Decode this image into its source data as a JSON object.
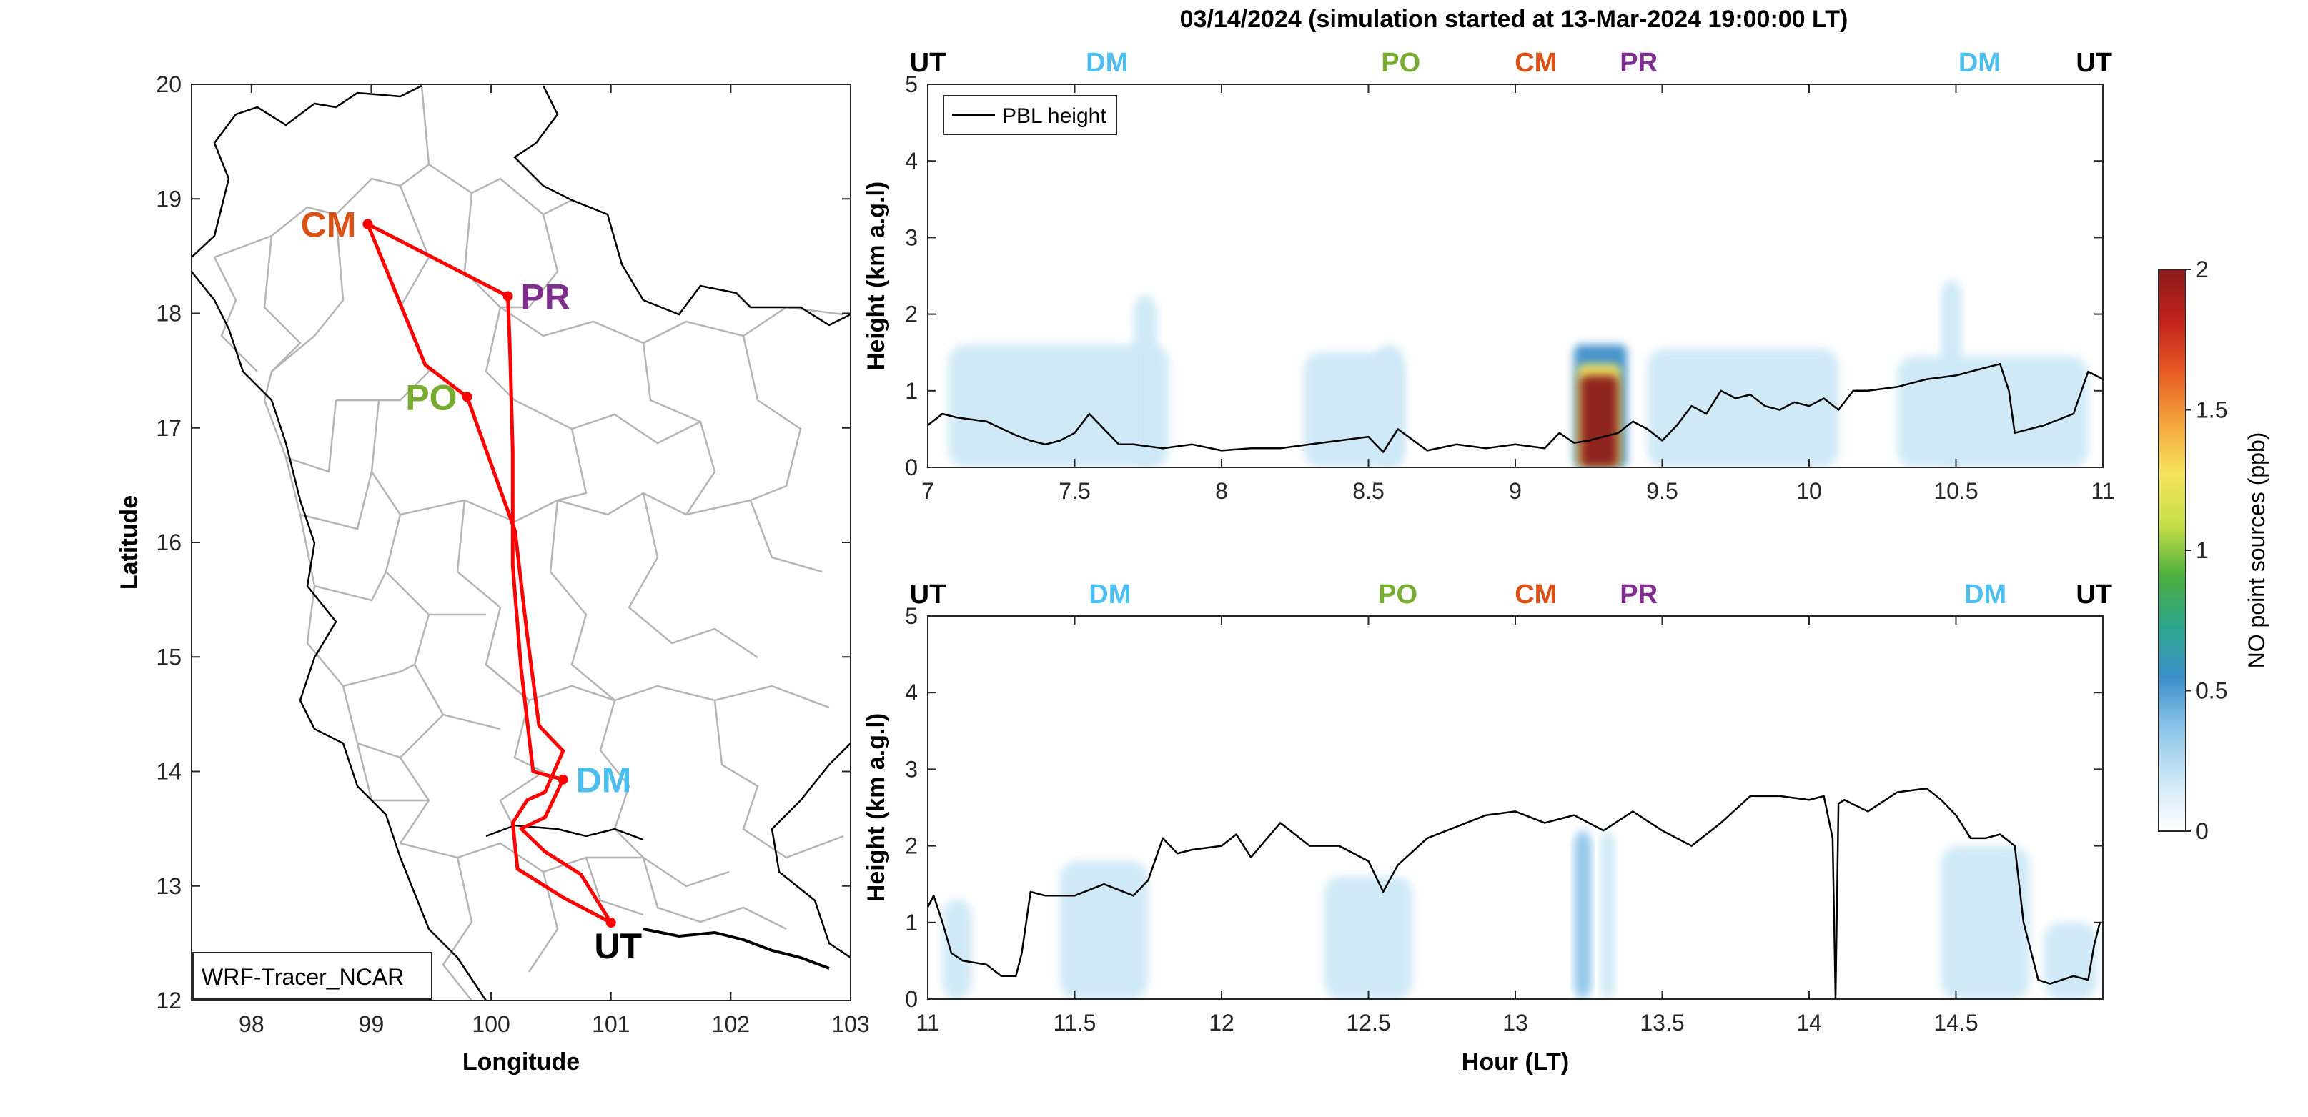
{
  "figure_title": "03/14/2024 (simulation started at 13-Mar-2024 19:00:00 LT)",
  "chart_data": [
    {
      "id": "map",
      "type": "line",
      "xlabel": "Longitude",
      "ylabel": "Latitude",
      "xlim": [
        97.5,
        103
      ],
      "ylim": [
        12,
        20
      ],
      "xticks": [
        98,
        99,
        100,
        101,
        102,
        103
      ],
      "yticks": [
        12,
        13,
        14,
        15,
        16,
        17,
        18,
        19,
        20
      ],
      "legend_label": "WRF-Tracer_NCAR",
      "legend_position": "bottom-left",
      "sites": [
        {
          "label": "CM",
          "lon": 98.97,
          "lat": 18.78,
          "color": "#D95319"
        },
        {
          "label": "PR",
          "lon": 100.14,
          "lat": 18.15,
          "color": "#7E2F8E"
        },
        {
          "label": "PO",
          "lon": 99.8,
          "lat": 17.27,
          "color": "#77AC30"
        },
        {
          "label": "DM",
          "lon": 100.6,
          "lat": 13.93,
          "color": "#4DBEEE"
        },
        {
          "label": "UT",
          "lon": 101.0,
          "lat": 12.68,
          "color": "#000000"
        }
      ],
      "flight_track": {
        "color": "#FF0000",
        "points": [
          [
            101.0,
            12.68
          ],
          [
            100.6,
            12.9
          ],
          [
            100.22,
            13.15
          ],
          [
            100.18,
            13.55
          ],
          [
            100.3,
            13.75
          ],
          [
            100.45,
            13.82
          ],
          [
            100.6,
            14.18
          ],
          [
            100.4,
            14.4
          ],
          [
            100.3,
            15.2
          ],
          [
            100.2,
            16.1
          ],
          [
            99.8,
            17.27
          ],
          [
            99.45,
            17.55
          ],
          [
            98.97,
            18.78
          ],
          [
            100.14,
            18.15
          ],
          [
            100.16,
            17.6
          ],
          [
            100.18,
            16.8
          ],
          [
            100.18,
            15.8
          ],
          [
            100.25,
            14.9
          ],
          [
            100.35,
            14.0
          ],
          [
            100.6,
            13.93
          ],
          [
            100.45,
            13.6
          ],
          [
            100.25,
            13.5
          ],
          [
            100.45,
            13.3
          ],
          [
            100.75,
            13.1
          ],
          [
            101.0,
            12.68
          ]
        ]
      }
    },
    {
      "id": "curtain-top",
      "type": "area",
      "ylabel": "Height (km a.g.l)",
      "xlim": [
        7,
        11
      ],
      "ylim": [
        0,
        5
      ],
      "xticks": [
        7,
        7.5,
        8,
        8.5,
        9,
        9.5,
        10,
        10.5,
        11
      ],
      "yticks": [
        0,
        1,
        2,
        3,
        4,
        5
      ],
      "legend_label": "PBL height",
      "legend_position": "top-left",
      "site_labels": [
        {
          "label": "UT",
          "x": 7.0,
          "color": "#000000"
        },
        {
          "label": "DM",
          "x": 7.61,
          "color": "#4DBEEE"
        },
        {
          "label": "PO",
          "x": 8.61,
          "color": "#77AC30"
        },
        {
          "label": "CM",
          "x": 9.07,
          "color": "#D95319"
        },
        {
          "label": "PR",
          "x": 9.42,
          "color": "#7E2F8E"
        },
        {
          "label": "DM",
          "x": 10.58,
          "color": "#4DBEEE"
        },
        {
          "label": "UT",
          "x": 10.97,
          "color": "#000000"
        }
      ],
      "pbl_height": {
        "x": [
          7.0,
          7.05,
          7.1,
          7.2,
          7.3,
          7.35,
          7.4,
          7.45,
          7.5,
          7.55,
          7.6,
          7.65,
          7.7,
          7.8,
          7.9,
          8.0,
          8.1,
          8.2,
          8.3,
          8.4,
          8.5,
          8.55,
          8.6,
          8.7,
          8.8,
          8.9,
          9.0,
          9.1,
          9.15,
          9.2,
          9.25,
          9.3,
          9.35,
          9.4,
          9.45,
          9.5,
          9.55,
          9.6,
          9.65,
          9.7,
          9.75,
          9.8,
          9.85,
          9.9,
          9.95,
          10.0,
          10.05,
          10.1,
          10.15,
          10.2,
          10.3,
          10.4,
          10.5,
          10.6,
          10.65,
          10.68,
          10.7,
          10.8,
          10.9,
          10.95,
          11.0
        ],
        "y": [
          0.55,
          0.7,
          0.65,
          0.6,
          0.42,
          0.35,
          0.3,
          0.35,
          0.45,
          0.7,
          0.5,
          0.3,
          0.3,
          0.25,
          0.3,
          0.22,
          0.25,
          0.25,
          0.3,
          0.35,
          0.4,
          0.2,
          0.5,
          0.22,
          0.3,
          0.25,
          0.3,
          0.25,
          0.45,
          0.32,
          0.35,
          0.4,
          0.45,
          0.6,
          0.5,
          0.35,
          0.55,
          0.8,
          0.7,
          1.0,
          0.9,
          0.95,
          0.8,
          0.75,
          0.85,
          0.8,
          0.9,
          0.75,
          1.0,
          1.0,
          1.05,
          1.15,
          1.2,
          1.3,
          1.35,
          1.0,
          0.45,
          0.55,
          0.7,
          1.25,
          1.15
        ]
      },
      "tracer_regions": [
        {
          "x0": 7.07,
          "x1": 7.82,
          "top": 1.6,
          "level": 0.2
        },
        {
          "x0": 7.7,
          "x1": 7.78,
          "top": 2.25,
          "level": 0.2
        },
        {
          "x0": 8.28,
          "x1": 8.62,
          "top": 1.5,
          "level": 0.18
        },
        {
          "x0": 8.52,
          "x1": 8.62,
          "top": 1.6,
          "level": 0.2
        },
        {
          "x0": 9.45,
          "x1": 10.1,
          "top": 1.55,
          "level": 0.18
        },
        {
          "x0": 10.3,
          "x1": 10.95,
          "top": 1.45,
          "level": 0.18
        },
        {
          "x0": 10.45,
          "x1": 10.52,
          "top": 2.45,
          "level": 0.18
        },
        {
          "x0": 9.2,
          "x1": 9.38,
          "top": 1.6,
          "level": 0.6
        },
        {
          "x0": 9.21,
          "x1": 9.36,
          "top": 1.35,
          "level": 1.2
        },
        {
          "x0": 9.22,
          "x1": 9.35,
          "top": 1.2,
          "level": 2.0
        }
      ]
    },
    {
      "id": "curtain-bottom",
      "type": "area",
      "xlabel": "Hour (LT)",
      "ylabel": "Height (km a.g.l)",
      "xlim": [
        11,
        15
      ],
      "ylim": [
        0,
        5
      ],
      "xticks": [
        11,
        11.5,
        12,
        12.5,
        13,
        13.5,
        14,
        14.5
      ],
      "yticks": [
        0,
        1,
        2,
        3,
        4,
        5
      ],
      "site_labels": [
        {
          "label": "UT",
          "x": 11.0,
          "color": "#000000"
        },
        {
          "label": "DM",
          "x": 11.62,
          "color": "#4DBEEE"
        },
        {
          "label": "PO",
          "x": 12.6,
          "color": "#77AC30"
        },
        {
          "label": "CM",
          "x": 13.07,
          "color": "#D95319"
        },
        {
          "label": "PR",
          "x": 13.42,
          "color": "#7E2F8E"
        },
        {
          "label": "DM",
          "x": 14.6,
          "color": "#4DBEEE"
        },
        {
          "label": "UT",
          "x": 14.97,
          "color": "#000000"
        }
      ],
      "pbl_height": {
        "x": [
          11.0,
          11.02,
          11.05,
          11.08,
          11.12,
          11.2,
          11.25,
          11.3,
          11.32,
          11.35,
          11.4,
          11.5,
          11.6,
          11.7,
          11.75,
          11.8,
          11.85,
          11.9,
          12.0,
          12.05,
          12.1,
          12.2,
          12.3,
          12.4,
          12.5,
          12.55,
          12.6,
          12.7,
          12.8,
          12.9,
          13.0,
          13.1,
          13.2,
          13.3,
          13.4,
          13.5,
          13.6,
          13.7,
          13.8,
          13.9,
          14.0,
          14.05,
          14.08,
          14.09,
          14.1,
          14.12,
          14.2,
          14.3,
          14.4,
          14.45,
          14.5,
          14.55,
          14.6,
          14.65,
          14.7,
          14.73,
          14.78,
          14.82,
          14.9,
          14.95,
          14.97,
          14.99
        ],
        "y": [
          1.2,
          1.35,
          1.0,
          0.6,
          0.5,
          0.45,
          0.3,
          0.3,
          0.6,
          1.4,
          1.35,
          1.35,
          1.5,
          1.35,
          1.55,
          2.1,
          1.9,
          1.95,
          2.0,
          2.15,
          1.85,
          2.3,
          2.0,
          2.0,
          1.8,
          1.4,
          1.75,
          2.1,
          2.25,
          2.4,
          2.45,
          2.3,
          2.4,
          2.2,
          2.45,
          2.2,
          2.0,
          2.3,
          2.65,
          2.65,
          2.6,
          2.65,
          2.1,
          0.0,
          2.55,
          2.6,
          2.45,
          2.7,
          2.75,
          2.6,
          2.4,
          2.1,
          2.1,
          2.15,
          2.0,
          1.0,
          0.25,
          0.2,
          0.3,
          0.25,
          0.7,
          1.0
        ]
      },
      "tracer_regions": [
        {
          "x0": 11.0,
          "x1": 15.0,
          "top": 2.6,
          "level": 0.08
        },
        {
          "x0": 11.05,
          "x1": 11.15,
          "top": 1.3,
          "level": 0.16
        },
        {
          "x0": 11.45,
          "x1": 11.75,
          "top": 1.8,
          "level": 0.1
        },
        {
          "x0": 12.35,
          "x1": 12.65,
          "top": 1.6,
          "level": 0.1
        },
        {
          "x0": 13.2,
          "x1": 13.26,
          "top": 2.2,
          "level": 0.3
        },
        {
          "x0": 13.29,
          "x1": 13.34,
          "top": 2.2,
          "level": 0.25
        },
        {
          "x0": 14.45,
          "x1": 14.75,
          "top": 2.0,
          "level": 0.1
        },
        {
          "x0": 14.8,
          "x1": 14.98,
          "top": 1.0,
          "level": 0.12
        }
      ]
    },
    {
      "id": "colorbar",
      "type": "heatmap",
      "label": "NO point sources (ppb)",
      "ylim": [
        0,
        2
      ],
      "ticks": [
        0,
        0.5,
        1,
        1.5,
        2
      ],
      "tick_labels": [
        "0",
        "0.5",
        "1",
        "1.5",
        "2"
      ],
      "colormap": [
        "#FFFFFF",
        "#CDE8F7",
        "#8EC6EA",
        "#3C8FCB",
        "#2CA58C",
        "#4DAF3F",
        "#C7DF47",
        "#F4E35C",
        "#F3A43B",
        "#E85A24",
        "#C0221C",
        "#8B1A1A"
      ]
    }
  ]
}
